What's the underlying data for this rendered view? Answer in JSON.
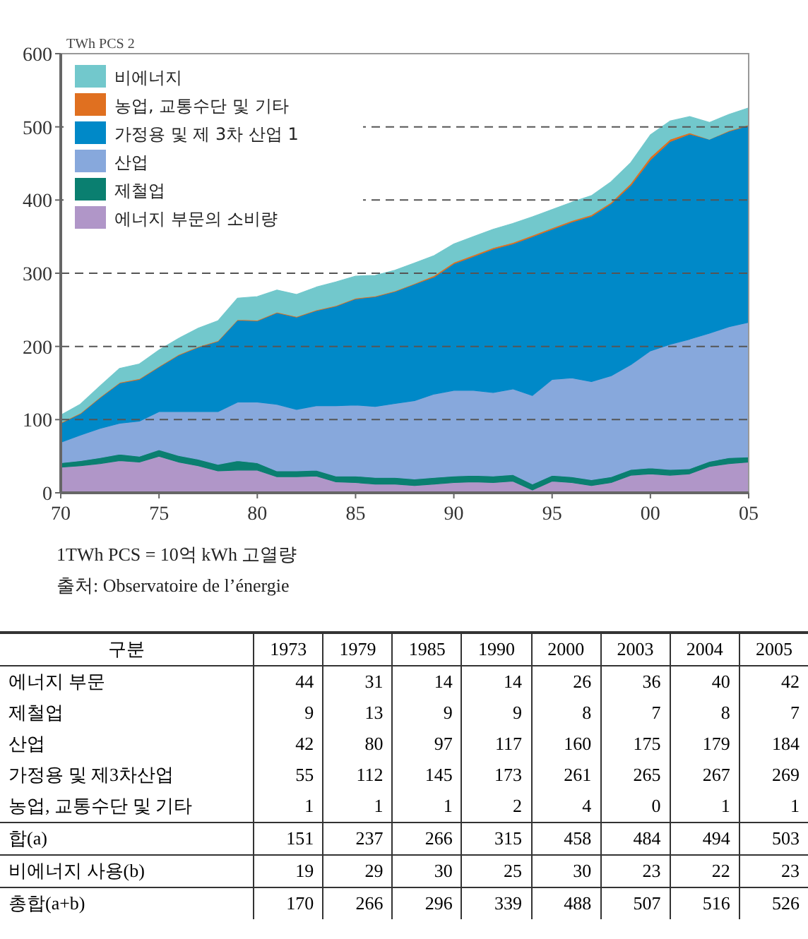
{
  "chart_data": [
    {
      "type": "area",
      "stacked": true,
      "ylabel": "TWh PCS 2",
      "x": [
        1970,
        1971,
        1972,
        1973,
        1974,
        1975,
        1976,
        1977,
        1978,
        1979,
        1980,
        1981,
        1982,
        1983,
        1984,
        1985,
        1986,
        1987,
        1988,
        1989,
        1990,
        1991,
        1992,
        1993,
        1994,
        1995,
        1996,
        1997,
        1998,
        1999,
        2000,
        2001,
        2002,
        2003,
        2004,
        2005
      ],
      "series": [
        {
          "name": "에너지 부문의 소비량",
          "color": "#b096c8",
          "values": [
            35,
            37,
            40,
            44,
            42,
            50,
            42,
            37,
            30,
            31,
            31,
            22,
            22,
            23,
            15,
            14,
            12,
            12,
            10,
            12,
            14,
            15,
            14,
            16,
            4,
            16,
            14,
            10,
            14,
            24,
            26,
            24,
            26,
            36,
            40,
            42
          ]
        },
        {
          "name": "제철업",
          "color": "#0a7f70",
          "values": [
            6,
            7,
            8,
            9,
            8,
            9,
            9,
            9,
            9,
            13,
            10,
            8,
            8,
            8,
            8,
            9,
            9,
            9,
            9,
            9,
            9,
            9,
            9,
            9,
            8,
            8,
            8,
            8,
            8,
            8,
            8,
            8,
            7,
            7,
            8,
            7
          ]
        },
        {
          "name": "산업",
          "color": "#87a8dc",
          "values": [
            28,
            35,
            40,
            42,
            48,
            52,
            60,
            65,
            72,
            80,
            83,
            91,
            84,
            88,
            96,
            97,
            97,
            101,
            107,
            114,
            117,
            116,
            114,
            117,
            121,
            131,
            135,
            134,
            138,
            143,
            160,
            171,
            177,
            175,
            179,
            184
          ]
        },
        {
          "name": "가정용 및 제 3차 산업 1",
          "color": "#0089c8",
          "values": [
            26,
            29,
            42,
            55,
            57,
            61,
            77,
            88,
            96,
            112,
            111,
            125,
            126,
            130,
            136,
            145,
            150,
            153,
            159,
            160,
            173,
            183,
            196,
            198,
            217,
            205,
            213,
            226,
            235,
            245,
            261,
            277,
            280,
            265,
            267,
            269
          ]
        },
        {
          "name": "농업, 교통수단 및 기타",
          "color": "#e07020",
          "values": [
            1,
            1,
            1,
            1,
            1,
            1,
            1,
            1,
            1,
            1,
            1,
            1,
            1,
            1,
            1,
            1,
            1,
            1,
            1,
            2,
            2,
            2,
            2,
            2,
            2,
            2,
            2,
            2,
            2,
            3,
            4,
            3,
            2,
            0,
            1,
            1
          ]
        },
        {
          "name": "비에너지",
          "color": "#72c8cc",
          "values": [
            10,
            12,
            15,
            19,
            20,
            22,
            22,
            25,
            27,
            29,
            32,
            30,
            30,
            31,
            32,
            30,
            28,
            28,
            28,
            27,
            25,
            25,
            25,
            26,
            25,
            25,
            25,
            26,
            28,
            28,
            30,
            25,
            22,
            23,
            22,
            23
          ]
        }
      ],
      "xlim": [
        1970,
        2005
      ],
      "xticks": [
        {
          "value": 1970,
          "label": "70"
        },
        {
          "value": 1975,
          "label": "75"
        },
        {
          "value": 1980,
          "label": "80"
        },
        {
          "value": 1985,
          "label": "85"
        },
        {
          "value": 1990,
          "label": "90"
        },
        {
          "value": 1995,
          "label": "95"
        },
        {
          "value": 2000,
          "label": "00"
        },
        {
          "value": 2005,
          "label": "05"
        }
      ],
      "ylim": [
        0,
        600
      ],
      "yticks": [
        0,
        100,
        200,
        300,
        400,
        500,
        600
      ],
      "grid": "y",
      "legend": "top left",
      "annotations": [
        "1TWh  PCS  =  10억  kWh  고열량",
        "출처:  Observatoire  de  l’énergie"
      ]
    },
    {
      "type": "heatmap",
      "ylabel": "구분",
      "data_labels": true,
      "categories": [
        "1973",
        "1979",
        "1985",
        "1990",
        "2000",
        "2003",
        "2004",
        "2005"
      ],
      "y_categories": [
        "에너지 부문",
        "제철업",
        "산업",
        "가정용 및 제3차산업",
        "농업, 교통수단 및 기타",
        "합(a)",
        "비에너지 사용(b)",
        "총합(a+b)"
      ],
      "cells": [
        [
          44,
          31,
          14,
          14,
          26,
          36,
          40,
          42
        ],
        [
          9,
          13,
          9,
          9,
          8,
          7,
          8,
          7
        ],
        [
          42,
          80,
          97,
          117,
          160,
          175,
          179,
          184
        ],
        [
          55,
          112,
          145,
          173,
          261,
          265,
          267,
          269
        ],
        [
          1,
          1,
          1,
          2,
          4,
          0,
          1,
          1
        ],
        [
          151,
          237,
          266,
          315,
          458,
          484,
          494,
          503
        ],
        [
          19,
          29,
          30,
          25,
          30,
          23,
          22,
          23
        ],
        [
          170,
          266,
          296,
          339,
          488,
          507,
          516,
          526
        ]
      ]
    }
  ]
}
